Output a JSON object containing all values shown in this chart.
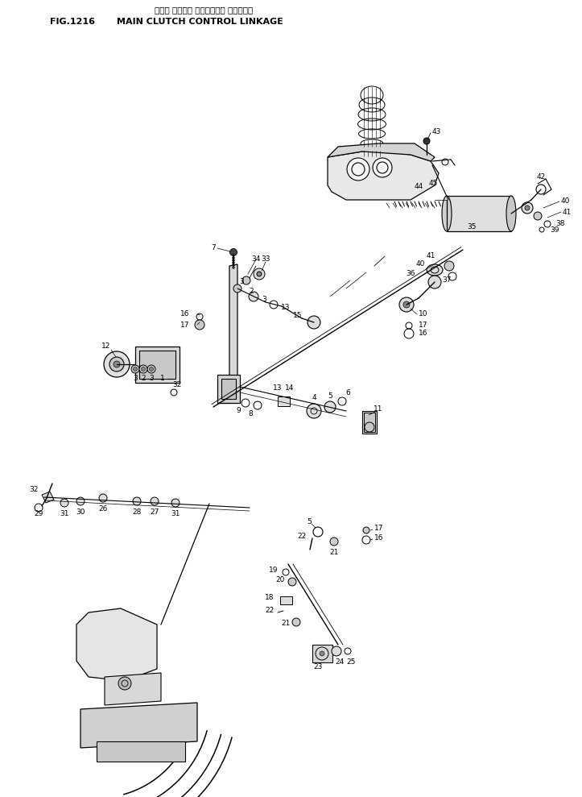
{
  "title_japanese": "メイン クラッチ コントロール リンケージ",
  "title_fig": "FIG.1216",
  "title_english": "MAIN CLUTCH CONTROL LINKAGE",
  "bg_color": "#ffffff",
  "line_color": "#000000",
  "text_color": "#000000",
  "fig_width": 7.23,
  "fig_height": 9.89,
  "dpi": 100
}
